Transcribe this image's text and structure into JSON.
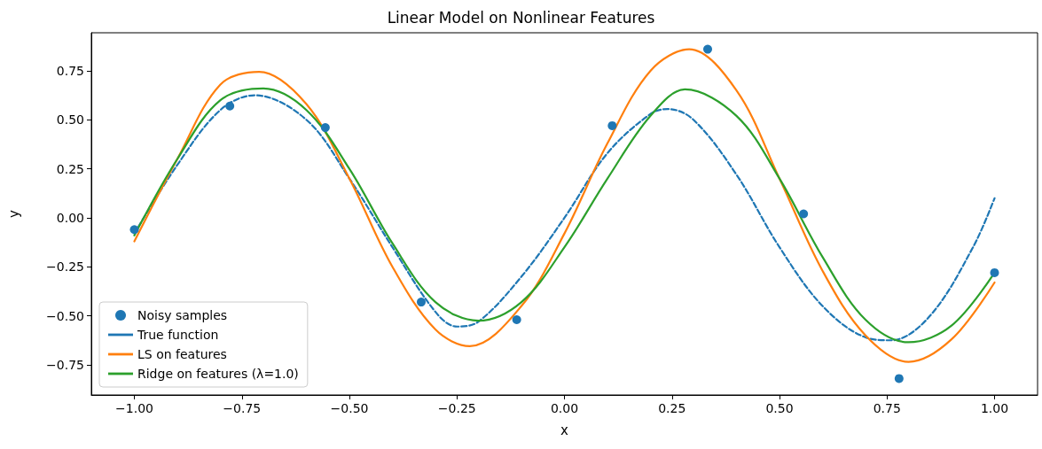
{
  "chart_data": {
    "type": "line",
    "title": "Linear Model on Nonlinear Features",
    "xlabel": "x",
    "ylabel": "y",
    "xlim": [
      -1.1,
      1.1
    ],
    "ylim": [
      -0.904,
      0.944
    ],
    "xticks": [
      {
        "value": -1,
        "label": "−1.00"
      },
      {
        "value": -0.75,
        "label": "−0.75"
      },
      {
        "value": -0.5,
        "label": "−0.50"
      },
      {
        "value": -0.25,
        "label": "−0.25"
      },
      {
        "value": 0,
        "label": "0.00"
      },
      {
        "value": 0.25,
        "label": "0.25"
      },
      {
        "value": 0.5,
        "label": "0.50"
      },
      {
        "value": 0.75,
        "label": "0.75"
      },
      {
        "value": 1,
        "label": "1.00"
      }
    ],
    "yticks": [
      {
        "value": -0.75,
        "label": "−0.75"
      },
      {
        "value": -0.5,
        "label": "−0.50"
      },
      {
        "value": -0.25,
        "label": "−0.25"
      },
      {
        "value": 0,
        "label": "0.00"
      },
      {
        "value": 0.25,
        "label": "0.25"
      },
      {
        "value": 0.5,
        "label": "0.50"
      },
      {
        "value": 0.75,
        "label": "0.75"
      }
    ],
    "grid": false,
    "legend": "bottom left",
    "series": [
      {
        "name": "Noisy samples",
        "type": "scatter",
        "marker": "circle",
        "color": "#1f77b4",
        "x": [
          -1,
          -0.778,
          -0.556,
          -0.333,
          -0.111,
          0.111,
          0.333,
          0.556,
          0.778,
          1
        ],
        "values": [
          -0.06,
          0.57,
          0.46,
          -0.43,
          -0.52,
          0.47,
          0.86,
          0.02,
          -0.82,
          -0.28
        ]
      },
      {
        "name": "True function",
        "line_style": "dashed",
        "color": "#1f77b4",
        "x": [
          -1,
          -0.9,
          -0.8,
          -0.72,
          -0.6,
          -0.5,
          -0.4,
          -0.3,
          -0.25,
          -0.2,
          -0.1,
          0,
          0.1,
          0.2,
          0.24,
          0.3,
          0.4,
          0.5,
          0.6,
          0.7,
          0.76,
          0.85,
          0.95,
          1
        ],
        "values": [
          -0.08,
          0.27,
          0.55,
          0.625,
          0.5,
          0.2,
          -0.15,
          -0.48,
          -0.555,
          -0.53,
          -0.3,
          0,
          0.33,
          0.53,
          0.555,
          0.5,
          0.22,
          -0.15,
          -0.45,
          -0.61,
          -0.625,
          -0.5,
          -0.15,
          0.1
        ]
      },
      {
        "name": "LS on features",
        "line_style": "solid",
        "color": "#ff7f0e",
        "x": [
          -1,
          -0.9,
          -0.8,
          -0.71,
          -0.6,
          -0.5,
          -0.4,
          -0.3,
          -0.22,
          -0.1,
          0,
          0.1,
          0.2,
          0.29,
          0.4,
          0.5,
          0.6,
          0.7,
          0.8,
          0.9,
          1
        ],
        "values": [
          -0.12,
          0.3,
          0.68,
          0.745,
          0.58,
          0.2,
          -0.25,
          -0.57,
          -0.655,
          -0.45,
          -0.08,
          0.38,
          0.75,
          0.86,
          0.65,
          0.2,
          -0.27,
          -0.6,
          -0.735,
          -0.62,
          -0.33
        ]
      },
      {
        "name": "Ridge on features (λ=1.0)",
        "line_style": "solid",
        "color": "#2ca02c",
        "x": [
          -1,
          -0.9,
          -0.8,
          -0.7,
          -0.6,
          -0.5,
          -0.4,
          -0.3,
          -0.2,
          -0.1,
          0,
          0.1,
          0.2,
          0.28,
          0.4,
          0.5,
          0.6,
          0.7,
          0.8,
          0.9,
          1
        ],
        "values": [
          -0.09,
          0.3,
          0.6,
          0.66,
          0.55,
          0.25,
          -0.13,
          -0.43,
          -0.525,
          -0.43,
          -0.15,
          0.2,
          0.52,
          0.655,
          0.52,
          0.2,
          -0.2,
          -0.52,
          -0.635,
          -0.55,
          -0.28
        ]
      }
    ]
  }
}
